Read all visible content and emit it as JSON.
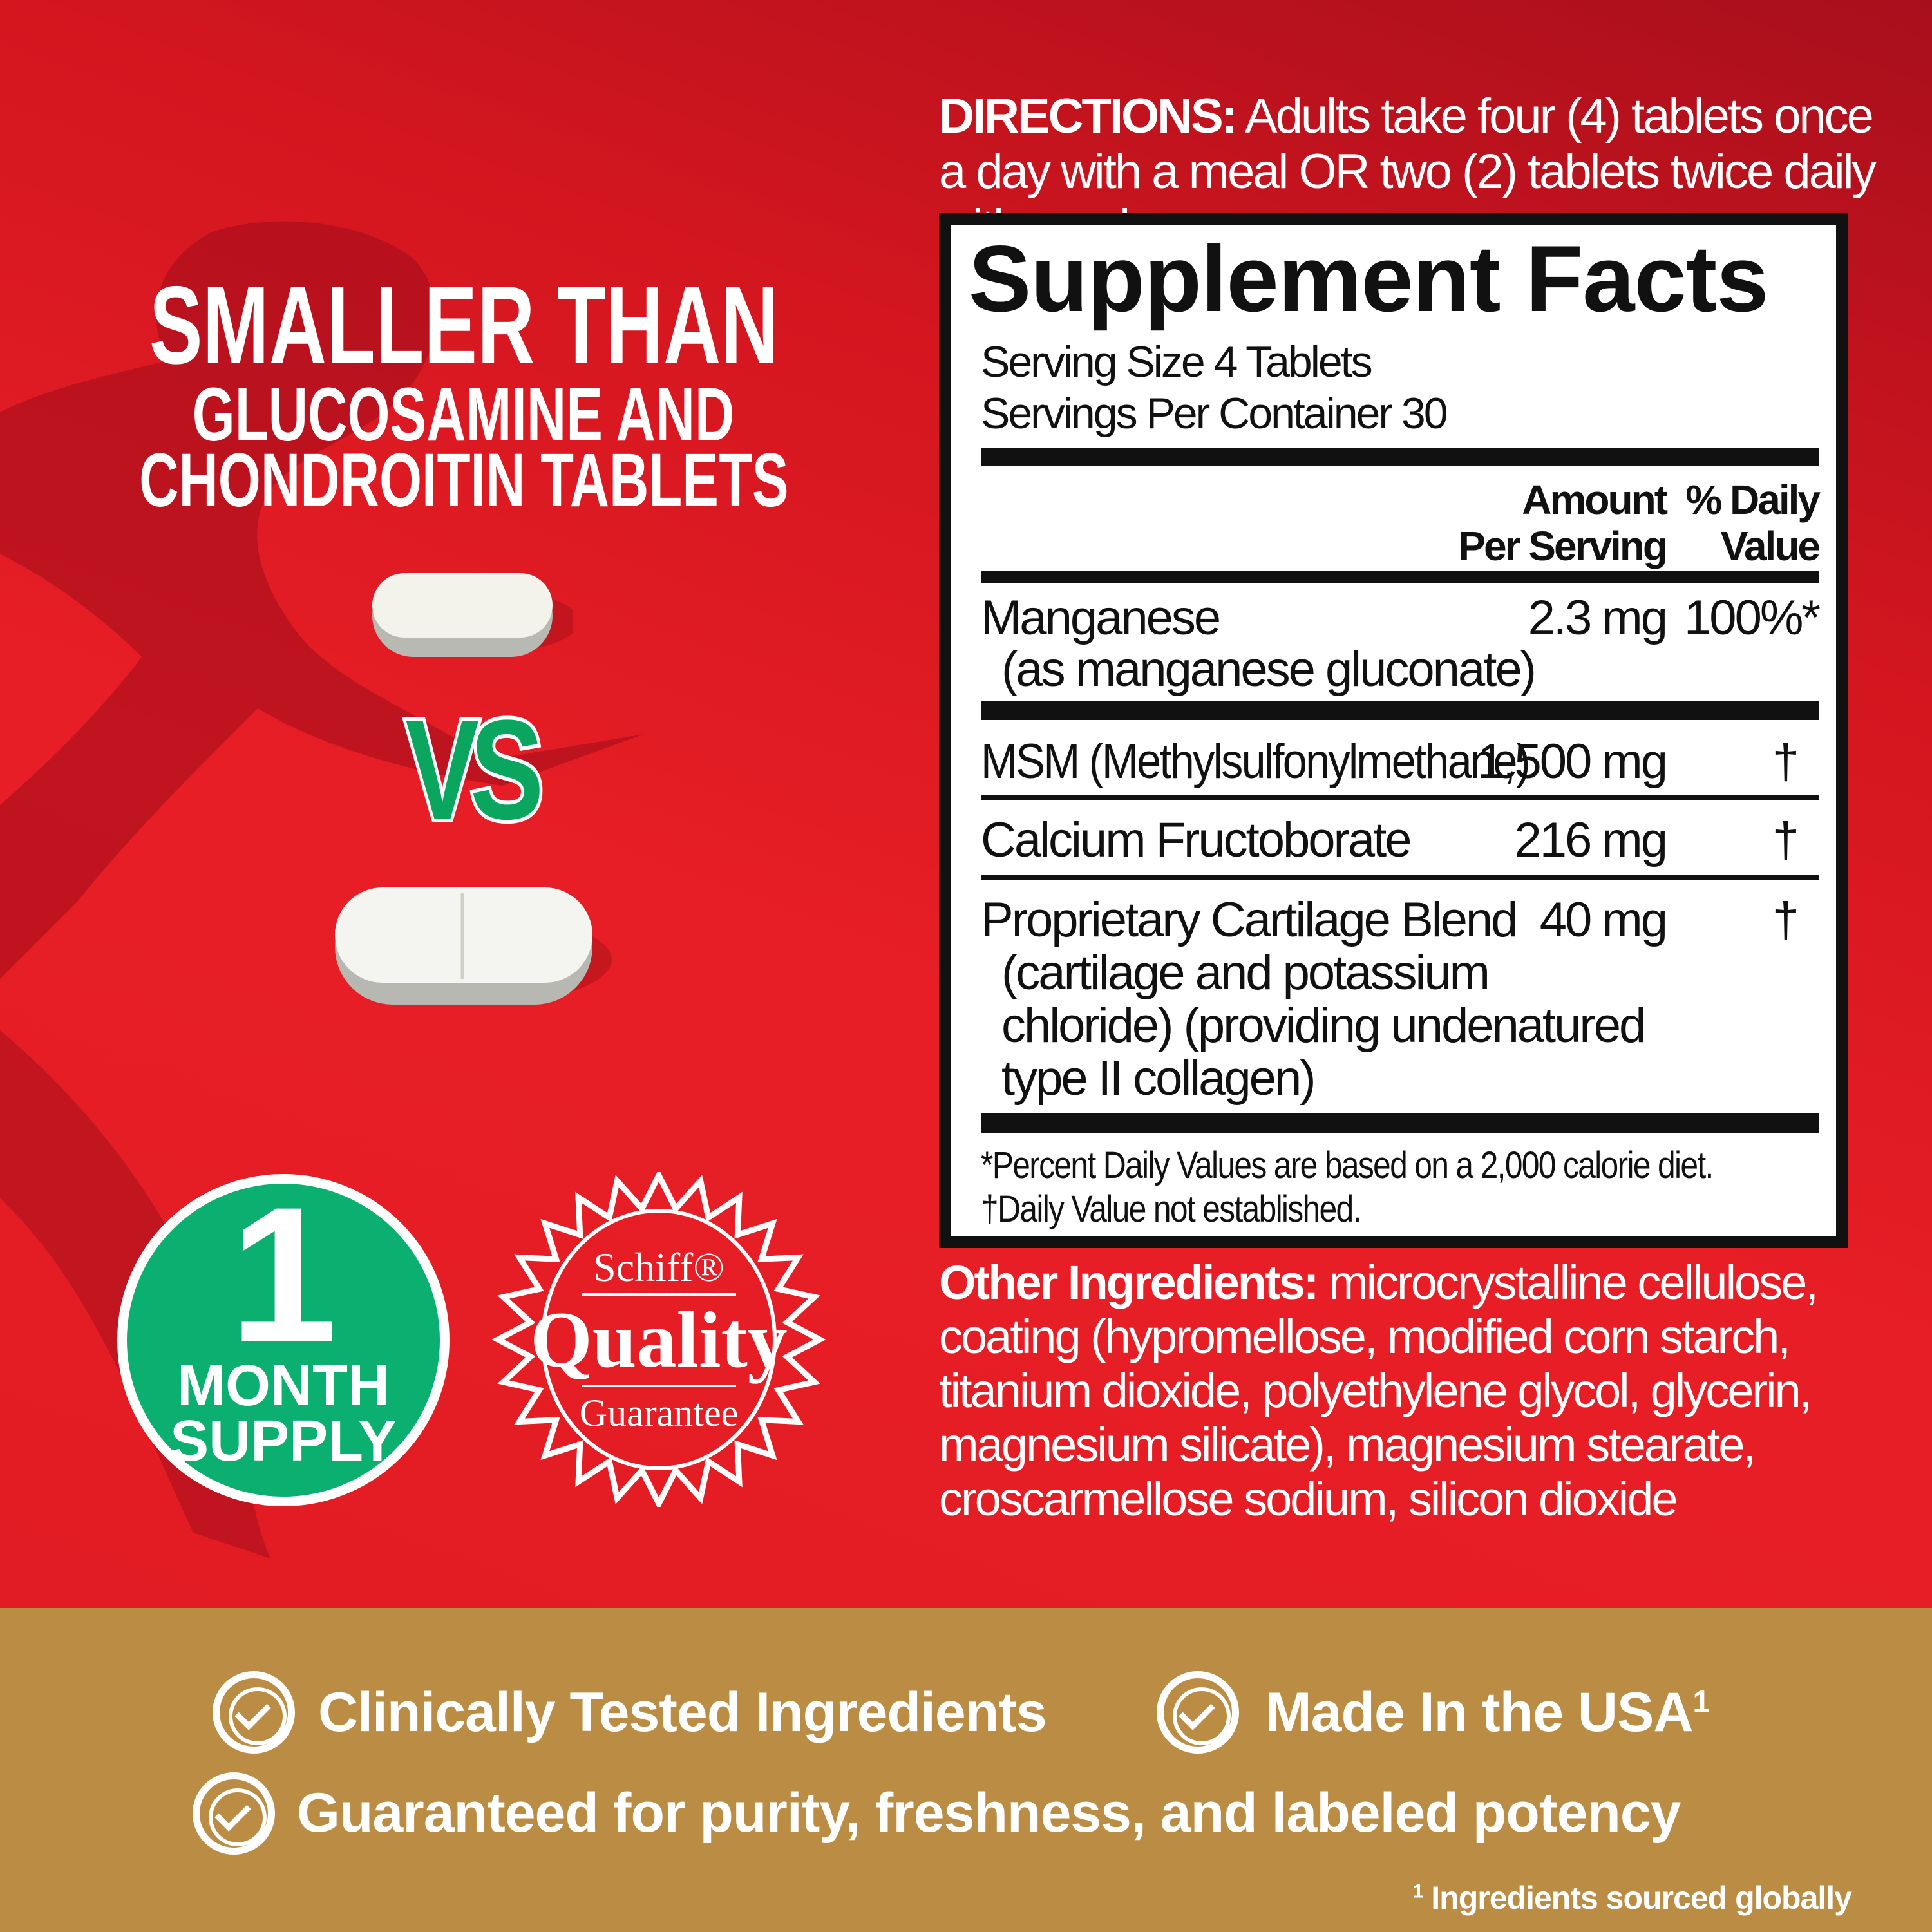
{
  "headline": {
    "line1": "SMALLER THAN",
    "line2": "GLUCOSAMINE AND",
    "line3": "CHONDROITIN TABLETS",
    "vs": "VS"
  },
  "badge_supply": {
    "number": "1",
    "line1": "MONTH",
    "line2": "SUPPLY",
    "color": "#0baf6f"
  },
  "seal": {
    "brand": "Schiff®",
    "word": "Quality",
    "sub": "Guarantee"
  },
  "directions": {
    "label": "DIRECTIONS:",
    "text": "Adults take four (4) tablets once a day with a meal OR two (2) tablets twice daily with meals."
  },
  "supplement_facts": {
    "title": "Supplement Facts",
    "serving_size": "Serving Size 4 Tablets",
    "servings_per_container": "Servings Per Container 30",
    "col_amount_1": "Amount",
    "col_amount_2": "Per Serving",
    "col_dv_1": "% Daily",
    "col_dv_2": "Value",
    "rows": [
      {
        "name": "Manganese",
        "sub": "(as manganese gluconate)",
        "amount": "2.3 mg",
        "dv": "100%*"
      },
      {
        "name": "MSM (Methylsulfonylmethane)",
        "amount": "1,500 mg",
        "dv": "†"
      },
      {
        "name": "Calcium Fructoborate",
        "amount": "216 mg",
        "dv": "†"
      },
      {
        "name": "Proprietary Cartilage Blend",
        "sub1": "(cartilage and potassium",
        "sub2": "chloride) (providing undenatured",
        "sub3": "type II collagen)",
        "amount": "40 mg",
        "dv": "†"
      }
    ],
    "footnote1": "*Percent Daily Values are based on a 2,000 calorie diet.",
    "footnote2": "†Daily Value not established."
  },
  "other_ingredients": {
    "label": "Other Ingredients:",
    "text": "microcrystalline cellulose, coating (hypromellose, modified corn starch, titanium dioxide, polyethylene glycol, glycerin, magnesium silicate), magnesium stearate, croscarmellose sodium, silicon dioxide"
  },
  "claims": {
    "c1": "Clinically Tested Ingredients",
    "c2": "Made In the USA",
    "c2_sup": "1",
    "c3": "Guaranteed for purity, freshness, and labeled potency",
    "footnote_sup": "1",
    "footnote": "Ingredients sourced globally"
  },
  "colors": {
    "background_red": "#e41d25",
    "band_gold": "#bb8c44",
    "vs_green": "#0aa660"
  }
}
